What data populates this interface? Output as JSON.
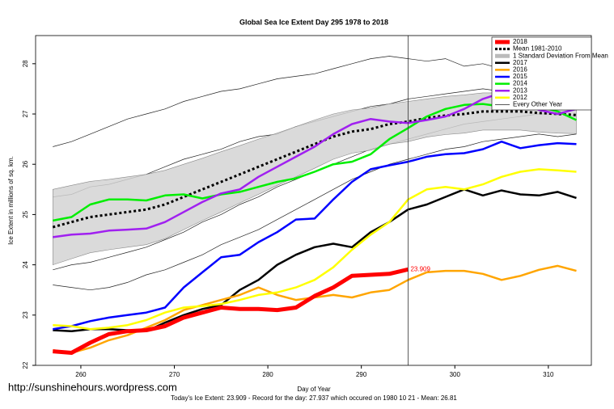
{
  "chart_data": {
    "type": "line",
    "title": "Global Sea Ice Extent Day 295 1978 to 2018",
    "x_label": "Day of Year",
    "y_label": "Ice Extent in millions of sq. km.",
    "footer": "Today's Ice Extent: 23.909  - Record for the day: 27.937 which occured on 1980 10 21  - Mean: 26.81",
    "watermark": "http://sunshinehours.wordpress.com",
    "xlim": [
      255.16,
      314.6
    ],
    "ylim": [
      22,
      28.56
    ],
    "xticks": [
      260,
      270,
      280,
      290,
      300,
      310
    ],
    "yticks": [
      22,
      23,
      24,
      25,
      26,
      27,
      28
    ],
    "vline_x": 295,
    "x": [
      257,
      259,
      261,
      263,
      265,
      267,
      269,
      271,
      273,
      275,
      277,
      279,
      281,
      283,
      285,
      287,
      289,
      291,
      293,
      295,
      297,
      299,
      301,
      303,
      305,
      307,
      309,
      311,
      313
    ],
    "series": [
      {
        "name": "2018",
        "color": "#ff0000",
        "width": 5,
        "values": [
          22.28,
          22.25,
          22.45,
          22.62,
          22.68,
          22.7,
          22.78,
          22.95,
          23.05,
          23.15,
          23.12,
          23.12,
          23.1,
          23.15,
          23.38,
          23.55,
          23.78,
          23.8,
          23.82,
          23.909,
          null,
          null,
          null,
          null,
          null,
          null,
          null,
          null,
          null
        ]
      },
      {
        "name": "Mean 1981-2010",
        "color": "#000000",
        "width": 3,
        "dashed": true,
        "values": [
          24.75,
          24.85,
          24.95,
          25.0,
          25.05,
          25.1,
          25.2,
          25.35,
          25.5,
          25.65,
          25.8,
          25.95,
          26.1,
          26.25,
          26.4,
          26.55,
          26.65,
          26.7,
          26.8,
          26.85,
          26.92,
          26.97,
          27.0,
          27.05,
          27.05,
          27.05,
          27.02,
          27.0,
          26.98
        ]
      },
      {
        "name": "2017",
        "color": "#000000",
        "width": 2.5,
        "values": [
          22.7,
          22.68,
          22.72,
          22.72,
          22.7,
          22.68,
          22.85,
          23.0,
          23.12,
          23.2,
          23.5,
          23.7,
          24.0,
          24.2,
          24.35,
          24.42,
          24.35,
          24.65,
          24.85,
          25.1,
          25.2,
          25.35,
          25.5,
          25.38,
          25.48,
          25.4,
          25.38,
          25.45,
          25.33
        ]
      },
      {
        "name": "2016",
        "color": "#ffa500",
        "width": 2.5,
        "values": [
          22.3,
          22.25,
          22.35,
          22.5,
          22.6,
          22.75,
          22.9,
          23.1,
          23.2,
          23.3,
          23.4,
          23.55,
          23.4,
          23.3,
          23.35,
          23.4,
          23.35,
          23.45,
          23.5,
          23.7,
          23.85,
          23.88,
          23.88,
          23.82,
          23.7,
          23.78,
          23.9,
          23.98,
          23.88
        ]
      },
      {
        "name": "2015",
        "color": "#0000ff",
        "width": 2.5,
        "values": [
          22.72,
          22.78,
          22.88,
          22.95,
          23.0,
          23.05,
          23.15,
          23.55,
          23.85,
          24.15,
          24.2,
          24.45,
          24.65,
          24.9,
          24.92,
          25.3,
          25.65,
          25.9,
          25.98,
          26.05,
          26.15,
          26.2,
          26.22,
          26.3,
          26.45,
          26.32,
          26.38,
          26.42,
          26.4
        ]
      },
      {
        "name": "2014",
        "color": "#00ee00",
        "width": 2.5,
        "values": [
          24.88,
          24.95,
          25.2,
          25.3,
          25.3,
          25.28,
          25.38,
          25.4,
          25.32,
          25.4,
          25.45,
          25.55,
          25.65,
          25.72,
          25.85,
          26.0,
          26.05,
          26.2,
          26.5,
          26.72,
          26.95,
          27.1,
          27.18,
          27.2,
          27.15,
          27.1,
          27.15,
          27.05,
          26.88
        ]
      },
      {
        "name": "2013",
        "color": "#a020f0",
        "width": 2.5,
        "values": [
          24.55,
          24.6,
          24.62,
          24.68,
          24.7,
          24.72,
          24.85,
          25.05,
          25.25,
          25.42,
          25.5,
          25.75,
          25.95,
          26.15,
          26.35,
          26.6,
          26.8,
          26.9,
          26.85,
          26.82,
          26.88,
          26.95,
          27.1,
          27.3,
          27.42,
          27.3,
          27.08,
          27.0,
          27.1
        ]
      },
      {
        "name": "2012",
        "color": "#ffff00",
        "width": 2.5,
        "values": [
          22.8,
          22.78,
          22.72,
          22.75,
          22.8,
          22.9,
          23.05,
          23.15,
          23.18,
          23.22,
          23.3,
          23.4,
          23.45,
          23.55,
          23.7,
          23.95,
          24.3,
          24.6,
          24.85,
          25.3,
          25.5,
          25.55,
          25.5,
          25.6,
          25.75,
          25.85,
          25.9,
          25.88,
          25.85
        ]
      }
    ],
    "band": {
      "name": "1 Standard Deviation From Mean",
      "color": "#d3d3d3",
      "upper": [
        25.5,
        25.58,
        25.66,
        25.7,
        25.75,
        25.8,
        25.88,
        26.0,
        26.12,
        26.25,
        26.37,
        26.5,
        26.62,
        26.75,
        26.88,
        27.0,
        27.08,
        27.12,
        27.2,
        27.25,
        27.3,
        27.35,
        27.38,
        27.42,
        27.42,
        27.42,
        27.4,
        27.38,
        27.35
      ],
      "lower": [
        24.0,
        24.12,
        24.24,
        24.3,
        24.35,
        24.4,
        24.52,
        24.7,
        24.88,
        25.05,
        25.23,
        25.4,
        25.58,
        25.75,
        25.92,
        26.1,
        26.22,
        26.28,
        26.4,
        26.45,
        26.54,
        26.59,
        26.62,
        26.68,
        26.68,
        26.68,
        26.64,
        26.62,
        26.61
      ]
    },
    "other_years": {
      "name": "Every Other Year",
      "color": "#222222",
      "lines": [
        [
          26.35,
          26.45,
          26.6,
          26.75,
          26.9,
          27.0,
          27.1,
          27.25,
          27.35,
          27.45,
          27.5,
          27.6,
          27.7,
          27.75,
          27.8,
          27.9,
          28.0,
          28.1,
          28.15,
          28.1,
          28.05,
          28.1,
          27.95,
          28.0,
          27.9,
          27.95,
          27.85,
          27.8,
          27.75
        ],
        [
          25.35,
          25.4,
          25.55,
          25.6,
          25.7,
          25.8,
          25.95,
          26.1,
          26.2,
          26.3,
          26.45,
          26.55,
          26.6,
          26.75,
          26.85,
          26.95,
          27.05,
          27.15,
          27.2,
          27.3,
          27.35,
          27.4,
          27.45,
          27.5,
          27.45,
          27.4,
          27.5,
          27.45,
          27.4
        ],
        [
          23.9,
          24.0,
          24.05,
          24.15,
          24.25,
          24.35,
          24.5,
          24.65,
          24.85,
          25.0,
          25.2,
          25.35,
          25.55,
          25.7,
          25.85,
          26.0,
          26.15,
          26.3,
          26.4,
          26.5,
          26.6,
          26.7,
          26.8,
          26.85,
          26.9,
          26.95,
          27.0,
          27.0,
          26.95
        ],
        [
          23.6,
          23.55,
          23.5,
          23.55,
          23.65,
          23.8,
          23.9,
          24.05,
          24.2,
          24.4,
          24.55,
          24.7,
          24.9,
          25.1,
          25.3,
          25.5,
          25.7,
          25.85,
          26.0,
          26.1,
          26.2,
          26.3,
          26.35,
          26.45,
          26.5,
          26.55,
          26.6,
          26.55,
          26.6
        ]
      ]
    }
  }
}
